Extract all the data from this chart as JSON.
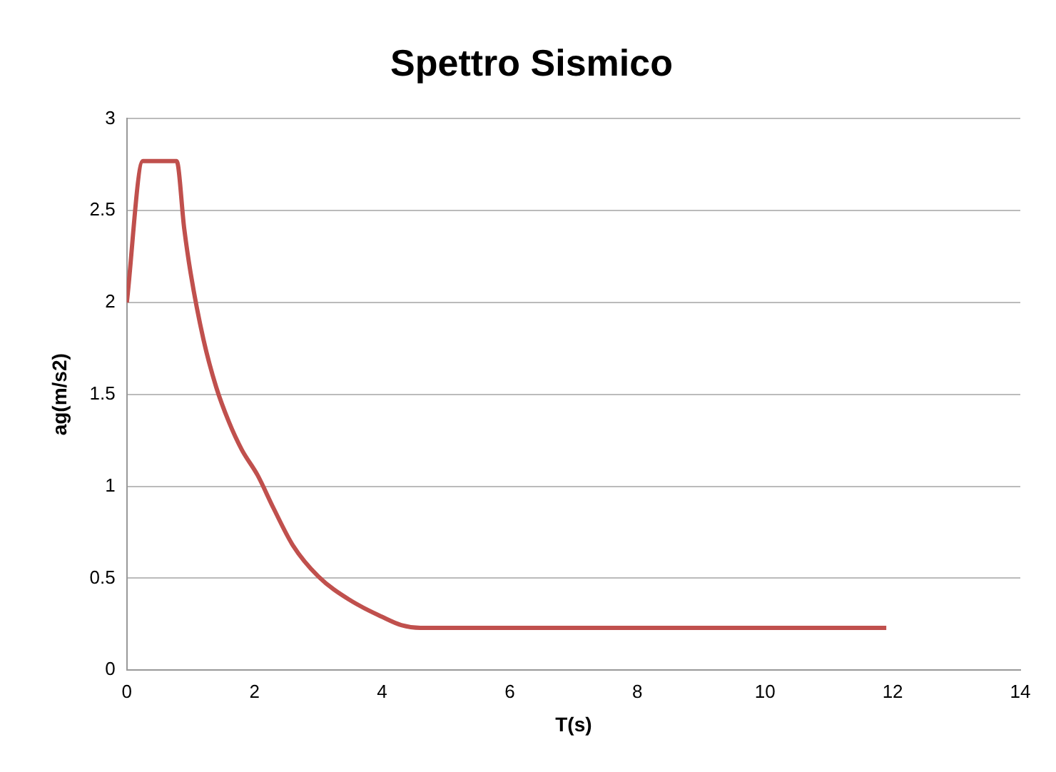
{
  "chart_data": {
    "type": "line",
    "title": "Spettro Sismico",
    "xlabel": "T(s)",
    "ylabel": "ag(m/s2)",
    "x": [
      0,
      0.25,
      0.78,
      0.9,
      1.0,
      1.2,
      1.4,
      1.6,
      1.8,
      2.05,
      2.3,
      2.6,
      3.0,
      3.5,
      4.0,
      4.3,
      4.6,
      5.0,
      11.9
    ],
    "series": [
      {
        "color": "#c0504d",
        "values": [
          2.0,
          2.77,
          2.77,
          2.4,
          2.16,
          1.8,
          1.54,
          1.35,
          1.2,
          1.06,
          0.88,
          0.68,
          0.51,
          0.38,
          0.29,
          0.245,
          0.23,
          0.23,
          0.23
        ]
      }
    ],
    "xlim": [
      0,
      14
    ],
    "xticks": [
      0,
      2,
      4,
      6,
      8,
      10,
      12,
      14
    ],
    "ylim": [
      0,
      3
    ],
    "yticks": [
      0,
      0.5,
      1,
      1.5,
      2,
      2.5,
      3
    ],
    "grid": "y",
    "legend": false,
    "marker": "none",
    "line_style": "solid"
  }
}
